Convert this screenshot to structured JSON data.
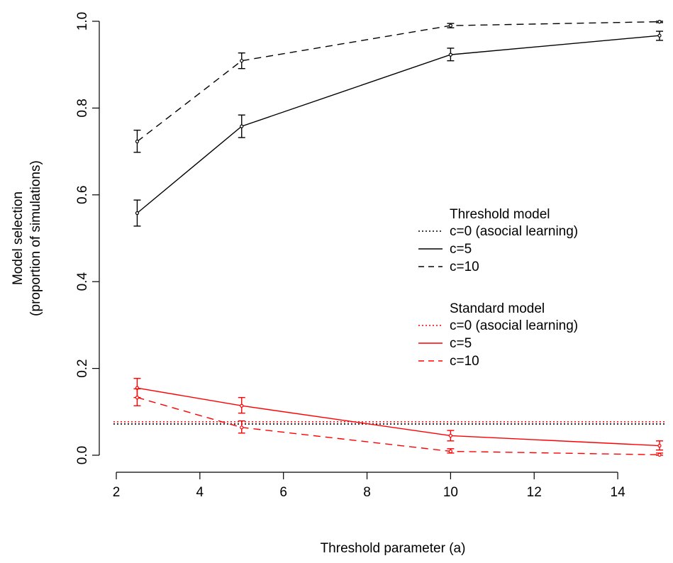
{
  "chart_data": {
    "type": "line",
    "title": "",
    "xlabel": "Threshold parameter (a)",
    "ylabel": [
      "Model selection",
      "(proportion of simulations)"
    ],
    "xlim": [
      2,
      15
    ],
    "ylim": [
      0,
      1
    ],
    "xticks": [
      2,
      4,
      6,
      8,
      10,
      12,
      14
    ],
    "yticks": [
      0.0,
      0.2,
      0.4,
      0.6,
      0.8,
      1.0
    ],
    "xtick_labels": [
      "2",
      "4",
      "6",
      "8",
      "10",
      "12",
      "14"
    ],
    "ytick_labels": [
      "0.0",
      "0.2",
      "0.4",
      "0.6",
      "0.8",
      "1.0"
    ],
    "grid": false,
    "legend_position": "right",
    "x": [
      2.5,
      5,
      10,
      15
    ],
    "series": [
      {
        "name": "c=5",
        "group": "Threshold model",
        "color": "#000000",
        "dash": "solid",
        "values": [
          0.558,
          0.758,
          0.923,
          0.967
        ],
        "err_low": [
          0.528,
          0.732,
          0.909,
          0.956
        ],
        "err_high": [
          0.588,
          0.784,
          0.938,
          0.977
        ]
      },
      {
        "name": "c=10",
        "group": "Threshold model",
        "color": "#000000",
        "dash": "dashed",
        "values": [
          0.723,
          0.909,
          0.99,
          0.999
        ],
        "err_low": [
          0.698,
          0.891,
          0.985,
          0.997
        ],
        "err_high": [
          0.749,
          0.927,
          0.995,
          1.0
        ]
      },
      {
        "name": "c=5",
        "group": "Standard model",
        "color": "#ff0000",
        "dash": "solid",
        "values": [
          0.155,
          0.114,
          0.045,
          0.022
        ],
        "err_low": [
          0.133,
          0.097,
          0.033,
          0.012
        ],
        "err_high": [
          0.177,
          0.133,
          0.057,
          0.033
        ]
      },
      {
        "name": "c=10",
        "group": "Standard model",
        "color": "#ff0000",
        "dash": "dashed",
        "values": [
          0.133,
          0.064,
          0.009,
          0.001
        ],
        "err_low": [
          0.114,
          0.051,
          0.005,
          0.0
        ],
        "err_high": [
          0.153,
          0.079,
          0.015,
          0.005
        ]
      }
    ],
    "reference_lines": [
      {
        "name": "c=0 (asocial learning)",
        "group": "Threshold model",
        "color": "#000000",
        "dash": "dotted",
        "y": 0.072
      },
      {
        "name": "c=0 (asocial learning)",
        "group": "Standard model",
        "color": "#ff0000",
        "dash": "dotted",
        "y": 0.077
      }
    ],
    "legend": [
      {
        "title": "Threshold model",
        "color": "#000000",
        "entries": [
          {
            "label": "c=0 (asocial learning)",
            "dash": "dotted"
          },
          {
            "label": "c=5",
            "dash": "solid"
          },
          {
            "label": "c=10",
            "dash": "dashed"
          }
        ]
      },
      {
        "title": "Standard model",
        "color": "#ff0000",
        "entries": [
          {
            "label": "c=0 (asocial learning)",
            "dash": "dotted"
          },
          {
            "label": "c=5",
            "dash": "solid"
          },
          {
            "label": "c=10",
            "dash": "dashed"
          }
        ]
      }
    ]
  }
}
